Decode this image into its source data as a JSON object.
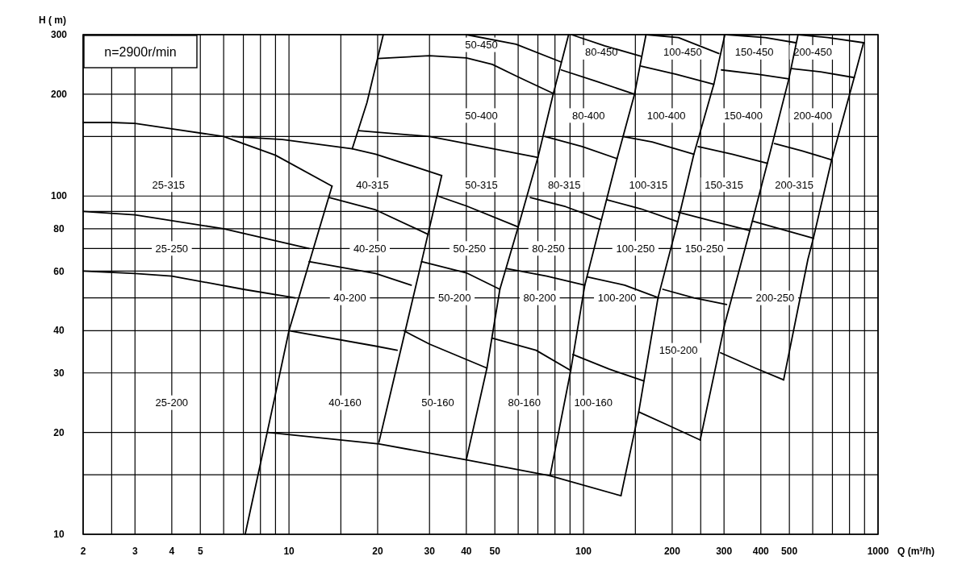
{
  "chart_data": {
    "type": "line",
    "xlabel": "Q (m³/h)",
    "ylabel": "H ( m)",
    "log": "xy",
    "grid": true,
    "xlim": [
      2,
      1000
    ],
    "ylim": [
      10,
      300
    ],
    "xticks": [
      2,
      {
        "value": 2.5,
        "label": null
      },
      3,
      4,
      5,
      {
        "value": 6,
        "label": null
      },
      {
        "value": 7,
        "label": null
      },
      {
        "value": 8,
        "label": null
      },
      {
        "value": 9,
        "label": null
      },
      10,
      {
        "value": 15,
        "label": null
      },
      20,
      30,
      40,
      50,
      {
        "value": 60,
        "label": null
      },
      {
        "value": 70,
        "label": null
      },
      {
        "value": 80,
        "label": null
      },
      {
        "value": 90,
        "label": null
      },
      100,
      {
        "value": 150,
        "label": null
      },
      200,
      {
        "value": 250,
        "label": null
      },
      300,
      400,
      500,
      {
        "value": 600,
        "label": null
      },
      {
        "value": 700,
        "label": null
      },
      {
        "value": 800,
        "label": null
      },
      {
        "value": 900,
        "label": null
      },
      1000
    ],
    "yticks": [
      10,
      {
        "value": 15,
        "label": null
      },
      20,
      30,
      40,
      {
        "value": 50,
        "label": null
      },
      60,
      {
        "value": 70,
        "label": null
      },
      80,
      {
        "value": 90,
        "label": null
      },
      100,
      {
        "value": 150,
        "label": null
      },
      200,
      300
    ],
    "series": [
      {
        "color": "#000000",
        "x": [
          2,
          2.5,
          3,
          4,
          6,
          9,
          14
        ],
        "values": [
          165,
          165,
          164,
          158,
          150,
          132,
          107
        ]
      },
      {
        "color": "#000000",
        "x": [
          14,
          10,
          9,
          7.1
        ],
        "values": [
          107,
          40,
          26,
          10
        ]
      },
      {
        "color": "#000000",
        "x": [
          2,
          3,
          6,
          11.7
        ],
        "values": [
          90,
          88,
          80,
          70
        ]
      },
      {
        "color": "#000000",
        "x": [
          2,
          3,
          4,
          7,
          10.5
        ],
        "values": [
          60,
          59,
          58,
          53,
          50
        ]
      },
      {
        "color": "#000000",
        "x": [
          6.4,
          9.5,
          16.4,
          19.7,
          33
        ],
        "values": [
          150,
          147,
          138,
          133,
          115
        ]
      },
      {
        "color": "#000000",
        "x": [
          20.9,
          18.4,
          16.4
        ],
        "values": [
          300,
          189,
          138
        ]
      },
      {
        "color": "#000000",
        "x": [
          20,
          30,
          40,
          49,
          60,
          79
        ],
        "values": [
          255,
          260,
          256,
          245,
          225,
          201
        ]
      },
      {
        "color": "#000000",
        "x": [
          40,
          59,
          84
        ],
        "values": [
          300,
          281,
          249
        ]
      },
      {
        "color": "#000000",
        "x": [
          89,
          79,
          70,
          60,
          52,
          47,
          40
        ],
        "values": [
          300,
          201,
          130,
          81,
          53,
          31,
          16.6
        ]
      },
      {
        "color": "#000000",
        "x": [
          17.2,
          30,
          40,
          70
        ],
        "values": [
          156,
          150,
          143,
          130
        ]
      },
      {
        "color": "#000000",
        "x": [
          13.7,
          19.7,
          29.7
        ],
        "values": [
          99,
          91,
          77
        ]
      },
      {
        "color": "#000000",
        "x": [
          32,
          40,
          60
        ],
        "values": [
          100,
          93.5,
          81
        ]
      },
      {
        "color": "#000000",
        "x": [
          33,
          28.2,
          20.2
        ],
        "values": [
          115,
          64,
          18.7
        ]
      },
      {
        "color": "#000000",
        "x": [
          11.7,
          19.7,
          26
        ],
        "values": [
          64,
          59,
          54.5
        ]
      },
      {
        "color": "#000000",
        "x": [
          10,
          19.7,
          23.3
        ],
        "values": [
          40,
          36,
          35
        ]
      },
      {
        "color": "#000000",
        "x": [
          8.5,
          20.2,
          40,
          77,
          134
        ],
        "values": [
          20,
          18.5,
          16.6,
          14.9,
          13
        ]
      },
      {
        "color": "#000000",
        "x": [
          28.2,
          40,
          52
        ],
        "values": [
          64,
          59.3,
          53
        ]
      },
      {
        "color": "#000000",
        "x": [
          24.5,
          30,
          47
        ],
        "values": [
          40,
          36.5,
          31
        ]
      },
      {
        "color": "#000000",
        "x": [
          91,
          118,
          157
        ],
        "values": [
          300,
          278,
          259
        ]
      },
      {
        "color": "#000000",
        "x": [
          84,
          111,
          149
        ],
        "values": [
          236,
          218,
          200
        ]
      },
      {
        "color": "#000000",
        "x": [
          74,
          99,
          130
        ],
        "values": [
          150,
          140,
          129
        ]
      },
      {
        "color": "#000000",
        "x": [
          66,
          87,
          115
        ],
        "values": [
          99,
          93,
          85
        ]
      },
      {
        "color": "#000000",
        "x": [
          55,
          75,
          101
        ],
        "values": [
          61,
          58,
          54.5
        ]
      },
      {
        "color": "#000000",
        "x": [
          49,
          69,
          90.5
        ],
        "values": [
          38,
          35,
          30.5
        ]
      },
      {
        "color": "#000000",
        "x": [
          163,
          149,
          130,
          115,
          101,
          90.5,
          77
        ],
        "values": [
          300,
          200,
          129,
          85,
          54.5,
          30.5,
          14.9
        ]
      },
      {
        "color": "#000000",
        "x": [
          163,
          210,
          288
        ],
        "values": [
          300,
          294,
          264
        ]
      },
      {
        "color": "#000000",
        "x": [
          157,
          206,
          277
        ],
        "values": [
          242,
          229,
          214
        ]
      },
      {
        "color": "#000000",
        "x": [
          136,
          171,
          237
        ],
        "values": [
          150,
          144.5,
          133
        ]
      },
      {
        "color": "#000000",
        "x": [
          120,
          157,
          209
        ],
        "values": [
          97.5,
          91.6,
          84
        ]
      },
      {
        "color": "#000000",
        "x": [
          103,
          138,
          180
        ],
        "values": [
          57.7,
          54.5,
          50
        ]
      },
      {
        "color": "#000000",
        "x": [
          92,
          122,
          160
        ],
        "values": [
          34,
          30.8,
          28.4
        ]
      },
      {
        "color": "#000000",
        "x": [
          302,
          277,
          237,
          209,
          179,
          154,
          134
        ],
        "values": [
          300,
          214,
          133,
          84,
          50,
          23,
          13
        ]
      },
      {
        "color": "#000000",
        "x": [
          186,
          237,
          306
        ],
        "values": [
          53,
          50,
          47.8
        ]
      },
      {
        "color": "#000000",
        "x": [
          154,
          194,
          249
        ],
        "values": [
          23,
          21,
          19
        ]
      },
      {
        "color": "#000000",
        "x": [
          535,
          498,
          421,
          367,
          302,
          249
        ],
        "values": [
          300,
          222,
          125,
          79,
          42,
          19
        ]
      },
      {
        "color": "#000000",
        "x": [
          306,
          414,
          525
        ],
        "values": [
          300,
          294,
          284
        ]
      },
      {
        "color": "#000000",
        "x": [
          294,
          390,
          498
        ],
        "values": [
          236,
          229,
          222
        ]
      },
      {
        "color": "#000000",
        "x": [
          245,
          320,
          421
        ],
        "values": [
          140,
          133,
          125
        ]
      },
      {
        "color": "#000000",
        "x": [
          210,
          274,
          367
        ],
        "values": [
          89.5,
          84.3,
          79
        ]
      },
      {
        "color": "#000000",
        "x": [
          535,
          676,
          893
        ],
        "values": [
          300,
          294,
          284
        ]
      },
      {
        "color": "#000000",
        "x": [
          509,
          638,
          830
        ],
        "values": [
          238,
          233,
          224
        ]
      },
      {
        "color": "#000000",
        "x": [
          445,
          551,
          696
        ],
        "values": [
          143,
          136,
          128
        ]
      },
      {
        "color": "#000000",
        "x": [
          375,
          474,
          603
        ],
        "values": [
          84.3,
          79.6,
          75
        ]
      },
      {
        "color": "#000000",
        "x": [
          292,
          383,
          478
        ],
        "values": [
          34.4,
          31,
          28.6
        ]
      },
      {
        "color": "#000000",
        "x": [
          893,
          830,
          696,
          603,
          578,
          478
        ],
        "values": [
          284,
          224,
          128,
          75,
          65,
          28.6
        ]
      }
    ],
    "annotations": [
      "n=2900r/min",
      "25-315",
      "25-250",
      "25-200",
      "40-315",
      "40-250",
      "40-200",
      "40-160",
      "50-450",
      "50-400",
      "50-315",
      "50-250",
      "50-200",
      "50-160",
      "80-450",
      "80-400",
      "80-315",
      "80-250",
      "80-200",
      "80-160",
      "100-450",
      "100-400",
      "100-315",
      "100-250",
      "100-200",
      "100-160",
      "150-450",
      "150-400",
      "150-315",
      "150-250",
      "150-200",
      "200-450",
      "200-400",
      "200-315",
      "200-250"
    ]
  }
}
